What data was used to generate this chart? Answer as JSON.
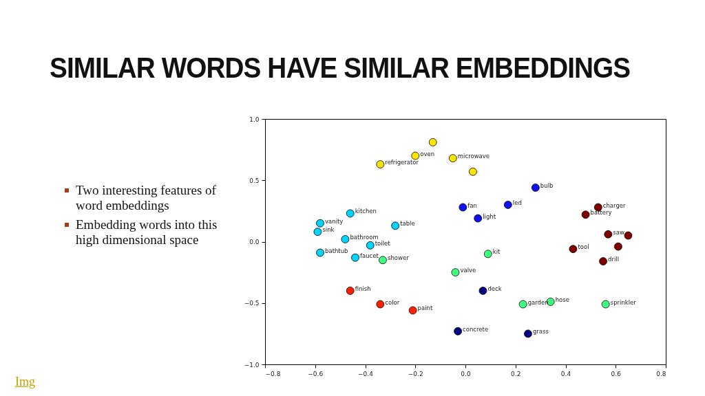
{
  "chart_data": {
    "type": "scatter",
    "title": "SIMILAR WORDS HAVE SIMILAR EMBEDDINGS",
    "xlim": [
      -0.8,
      0.8
    ],
    "ylim": [
      -1.0,
      1.0
    ],
    "xticks": [
      {
        "value": -0.8,
        "label": "−0.8"
      },
      {
        "value": -0.6,
        "label": "−0.6"
      },
      {
        "value": -0.4,
        "label": "−0.4"
      },
      {
        "value": -0.2,
        "label": "−0.2"
      },
      {
        "value": 0,
        "label": "0.0"
      },
      {
        "value": 0.2,
        "label": "0.2"
      },
      {
        "value": 0.4,
        "label": "0.4"
      },
      {
        "value": 0.6,
        "label": "0.6"
      },
      {
        "value": 0.8,
        "label": "0.8"
      }
    ],
    "yticks": [
      {
        "value": -1,
        "label": "−1.0"
      },
      {
        "value": -0.5,
        "label": "−0.5"
      },
      {
        "value": 0,
        "label": "0.0"
      },
      {
        "value": 0.5,
        "label": "0.5"
      },
      {
        "value": 1,
        "label": "1.0"
      }
    ],
    "grid": false,
    "marker": "circle",
    "series": [
      {
        "color": "#ffe600",
        "x": [
          -0.34,
          -0.2,
          -0.13,
          -0.05,
          0.03
        ],
        "values": [
          0.63,
          0.7,
          0.81,
          0.68,
          0.57
        ]
      },
      {
        "color": "#00d4ff",
        "x": [
          -0.46,
          -0.58,
          -0.59,
          -0.48,
          -0.38,
          -0.28,
          -0.58,
          -0.44
        ],
        "values": [
          0.23,
          0.15,
          0.08,
          0.02,
          -0.03,
          0.13,
          -0.09,
          -0.13
        ]
      },
      {
        "color": "#40ff80",
        "x": [
          -0.33,
          -0.04,
          0.09,
          0.23,
          0.34,
          0.56
        ],
        "values": [
          -0.15,
          -0.25,
          -0.1,
          -0.51,
          -0.49,
          -0.51
        ]
      },
      {
        "color": "#1010f0",
        "x": [
          -0.01,
          0.05,
          0.17,
          0.28
        ],
        "values": [
          0.28,
          0.19,
          0.3,
          0.44
        ]
      },
      {
        "color": "#000080",
        "x": [
          0.07,
          -0.03,
          0.25
        ],
        "values": [
          -0.4,
          -0.73,
          -0.75
        ]
      },
      {
        "color": "#800000",
        "x": [
          0.53,
          0.48,
          0.57,
          0.65,
          0.61,
          0.43,
          0.55
        ],
        "values": [
          0.28,
          0.22,
          0.06,
          0.05,
          -0.04,
          -0.06,
          -0.16
        ]
      },
      {
        "color": "#ff2000",
        "x": [
          -0.46,
          -0.34,
          -0.21
        ],
        "values": [
          -0.4,
          -0.51,
          -0.56
        ]
      }
    ],
    "annotations": [
      "Two interesting features of word embeddings",
      "Embedding words into this high dimensional space",
      "Img",
      {
        "text": "refrigerator",
        "x": -0.34,
        "y": 0.63
      },
      {
        "text": "oven",
        "x": -0.2,
        "y": 0.7
      },
      {
        "text": "microwave",
        "x": -0.05,
        "y": 0.68
      },
      {
        "text": "kitchen",
        "x": -0.46,
        "y": 0.23
      },
      {
        "text": "vanity",
        "x": -0.58,
        "y": 0.15
      },
      {
        "text": "sink",
        "x": -0.59,
        "y": 0.08
      },
      {
        "text": "bathroom",
        "x": -0.48,
        "y": 0.02
      },
      {
        "text": "toilet",
        "x": -0.38,
        "y": -0.03
      },
      {
        "text": "table",
        "x": -0.28,
        "y": 0.13
      },
      {
        "text": "bathtub",
        "x": -0.58,
        "y": -0.09
      },
      {
        "text": "faucet",
        "x": -0.44,
        "y": -0.13
      },
      {
        "text": "shower",
        "x": -0.33,
        "y": -0.15
      },
      {
        "text": "valve",
        "x": -0.04,
        "y": -0.25
      },
      {
        "text": "kit",
        "x": 0.09,
        "y": -0.1
      },
      {
        "text": "garden",
        "x": 0.23,
        "y": -0.51
      },
      {
        "text": "hose",
        "x": 0.34,
        "y": -0.49
      },
      {
        "text": "sprinkler",
        "x": 0.56,
        "y": -0.51
      },
      {
        "text": "fan",
        "x": -0.01,
        "y": 0.28
      },
      {
        "text": "light",
        "x": 0.05,
        "y": 0.19
      },
      {
        "text": "led",
        "x": 0.17,
        "y": 0.3
      },
      {
        "text": "bulb",
        "x": 0.28,
        "y": 0.44
      },
      {
        "text": "deck",
        "x": 0.07,
        "y": -0.4
      },
      {
        "text": "concrete",
        "x": -0.03,
        "y": -0.73
      },
      {
        "text": "grass",
        "x": 0.25,
        "y": -0.75
      },
      {
        "text": "charger",
        "x": 0.53,
        "y": 0.28
      },
      {
        "text": "battery",
        "x": 0.48,
        "y": 0.22
      },
      {
        "text": "saw",
        "x": 0.57,
        "y": 0.06
      },
      {
        "text": "tool",
        "x": 0.43,
        "y": -0.06
      },
      {
        "text": "drill",
        "x": 0.55,
        "y": -0.16
      },
      {
        "text": "finish",
        "x": -0.46,
        "y": -0.4
      },
      {
        "text": "color",
        "x": -0.34,
        "y": -0.51
      },
      {
        "text": "paint",
        "x": -0.21,
        "y": -0.56
      }
    ]
  }
}
